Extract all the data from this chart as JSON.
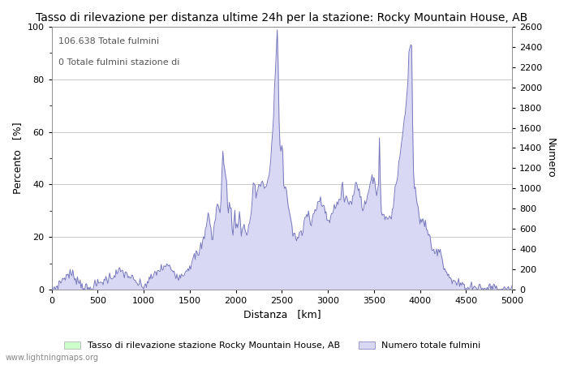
{
  "title": "Tasso di rilevazione per distanza ultime 24h per la stazione: Rocky Mountain House, AB",
  "annotation_line1": "106.638 Totale fulmini",
  "annotation_line2": "0 Totale fulmini stazione di",
  "xlabel": "Distanza   [km]",
  "ylabel_left": "Percento   [%]",
  "ylabel_right": "Numero",
  "xlim": [
    0,
    5000
  ],
  "ylim_left": [
    0,
    100
  ],
  "ylim_right": [
    0,
    2600
  ],
  "yticks_left": [
    0,
    20,
    40,
    60,
    80,
    100
  ],
  "yticks_right": [
    0,
    200,
    400,
    600,
    800,
    1000,
    1200,
    1400,
    1600,
    1800,
    2000,
    2200,
    2400,
    2600
  ],
  "xticks": [
    0,
    500,
    1000,
    1500,
    2000,
    2500,
    3000,
    3500,
    4000,
    4500,
    5000
  ],
  "legend_label_green": "Tasso di rilevazione stazione Rocky Mountain House, AB",
  "legend_label_blue": "Numero totale fulmini",
  "watermark": "www.lightningmaps.org",
  "fill_blue_color": "#d8d8f5",
  "fill_green_color": "#ccffcc",
  "line_color": "#7777bb",
  "bg_color": "#ffffff",
  "grid_color": "#c0c0c0",
  "title_fontsize": 10,
  "axis_fontsize": 9,
  "tick_fontsize": 8,
  "annotation_fontsize": 8,
  "legend_fontsize": 8,
  "watermark_fontsize": 7
}
